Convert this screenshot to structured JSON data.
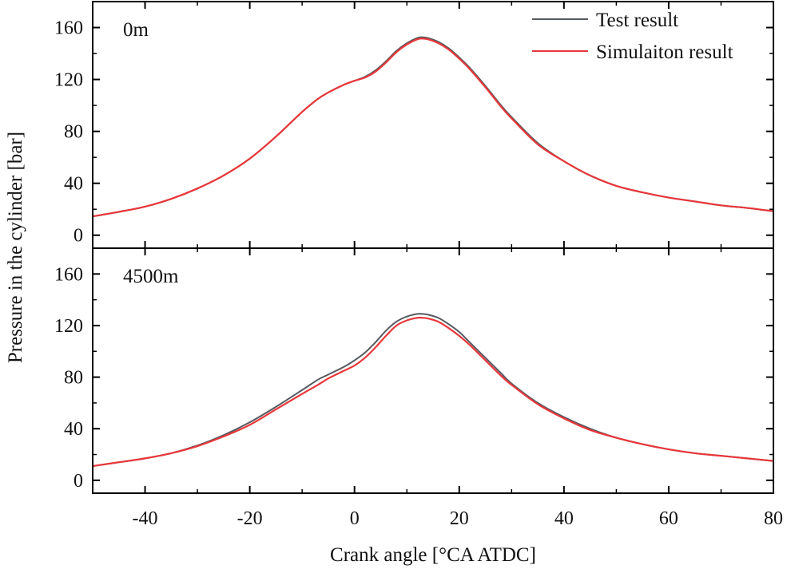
{
  "chart_data": {
    "type": "line",
    "xlabel": "Crank angle [°CA ATDC]",
    "ylabel": "Pressure in the cylinder [bar]",
    "xlim": [
      -50,
      80
    ],
    "xticks": [
      -40,
      -20,
      0,
      20,
      40,
      60,
      80
    ],
    "xtick_labels": [
      "-40",
      "-20",
      "0",
      "20",
      "40",
      "60",
      "80"
    ],
    "legend": {
      "position": "top-right",
      "entries": [
        "Test result",
        "Simulaiton result"
      ]
    },
    "colors": {
      "test": "#555a60",
      "simulation": "#e8373a"
    },
    "panels": [
      {
        "label": "0m",
        "ylim": [
          -10,
          180
        ],
        "yticks": [
          0,
          40,
          80,
          120,
          160
        ],
        "ytick_labels": [
          "0",
          "40",
          "80",
          "120",
          "160"
        ],
        "series": [
          {
            "name": "Test result",
            "x": [
              -50,
              -45,
              -40,
              -35,
              -30,
              -25,
              -20,
              -15,
              -10,
              -7,
              -5,
              -2,
              0,
              2,
              4,
              6,
              8,
              10,
              12,
              13,
              14,
              16,
              18,
              20,
              22,
              25,
              28,
              30,
              35,
              40,
              45,
              50,
              55,
              60,
              65,
              70,
              75,
              80
            ],
            "y": [
              14.5,
              18,
              22,
              28,
              36,
              46,
              59,
              76,
              95,
              105,
              110,
              116,
              119,
              122,
              127,
              134,
              142,
              148,
              152,
              152.5,
              152,
              149,
              144,
              137,
              129,
              115,
              100,
              91,
              71,
              57,
              46,
              38,
              33,
              29,
              26,
              23,
              21,
              18.5
            ]
          },
          {
            "name": "Simulaiton result",
            "x": [
              -50,
              -45,
              -40,
              -35,
              -30,
              -25,
              -20,
              -15,
              -10,
              -7,
              -5,
              -2,
              0,
              2,
              4,
              6,
              8,
              10,
              12,
              13,
              14,
              16,
              18,
              20,
              22,
              25,
              28,
              30,
              35,
              40,
              45,
              50,
              55,
              60,
              65,
              70,
              75,
              80
            ],
            "y": [
              14.5,
              18,
              22,
              28,
              36,
              46,
              59,
              76,
              95,
              105,
              110,
              116,
              119,
              121.5,
              126,
              133,
              141,
              147,
              151,
              151.5,
              151,
              148,
              143,
              136,
              128,
              114,
              99,
              90,
              70,
              57,
              46,
              38,
              33,
              29,
              26,
              23,
              21,
              18.5
            ]
          }
        ]
      },
      {
        "label": "4500m",
        "ylim": [
          -10,
          180
        ],
        "yticks": [
          0,
          40,
          80,
          120,
          160
        ],
        "ytick_labels": [
          "0",
          "40",
          "80",
          "120",
          "160"
        ],
        "series": [
          {
            "name": "Test result",
            "x": [
              -50,
              -45,
              -40,
              -35,
              -30,
              -25,
              -20,
              -15,
              -10,
              -7,
              -5,
              -2,
              0,
              2,
              4,
              6,
              8,
              10,
              12,
              13,
              14,
              16,
              18,
              20,
              22,
              25,
              28,
              30,
              35,
              40,
              45,
              50,
              55,
              60,
              65,
              70,
              75,
              80
            ],
            "y": [
              11,
              14,
              17,
              21,
              27,
              35,
              45,
              57,
              70,
              78,
              82,
              88,
              93,
              99,
              107,
              116,
              123,
              127,
              129,
              129,
              128.5,
              126,
              121,
              115,
              107,
              95,
              83,
              75,
              60,
              49,
              40,
              33,
              28,
              24,
              21,
              19,
              17,
              15
            ]
          },
          {
            "name": "Simulaiton result",
            "x": [
              -50,
              -45,
              -40,
              -35,
              -30,
              -25,
              -20,
              -15,
              -10,
              -7,
              -5,
              -2,
              0,
              2,
              4,
              6,
              8,
              10,
              12,
              13,
              14,
              16,
              18,
              20,
              22,
              25,
              28,
              30,
              35,
              40,
              45,
              50,
              55,
              60,
              65,
              70,
              75,
              80
            ],
            "y": [
              11,
              14,
              17,
              21,
              26.5,
              34,
              43,
              55,
              67,
              74,
              79,
              85,
              89,
              95,
              103,
              112,
              120,
              124,
              126,
              126,
              125.5,
              123,
              118,
              112,
              105,
              93,
              81,
              74,
              59,
              48,
              39,
              33,
              28,
              24,
              21,
              19,
              17,
              15
            ]
          }
        ]
      }
    ]
  }
}
